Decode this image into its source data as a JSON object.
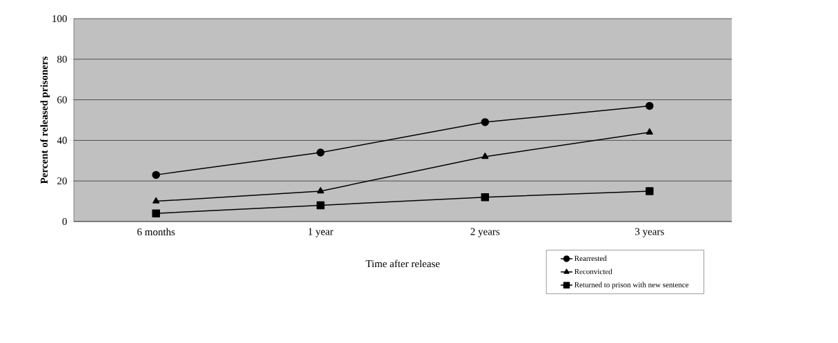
{
  "chart_data": {
    "type": "line",
    "xlabel": "Time after release",
    "ylabel": "Percent of released prisoners",
    "categories": [
      "6 months",
      "1 year",
      "2 years",
      "3 years"
    ],
    "series": [
      {
        "name": "Rearrested",
        "color": "#000000",
        "marker": "circle",
        "values": [
          23,
          34,
          49,
          57
        ]
      },
      {
        "name": "Reconvicted",
        "color": "#000000",
        "marker": "triangle",
        "values": [
          10,
          15,
          32,
          44
        ]
      },
      {
        "name": "Returned to prison with new sentence",
        "color": "#000000",
        "marker": "square",
        "values": [
          4,
          8,
          12,
          15
        ]
      }
    ],
    "ylim": [
      0,
      100
    ],
    "yticks": [
      0,
      20,
      40,
      60,
      80,
      100
    ],
    "grid": "y",
    "legend": "bottom right",
    "line_style": "solid"
  }
}
